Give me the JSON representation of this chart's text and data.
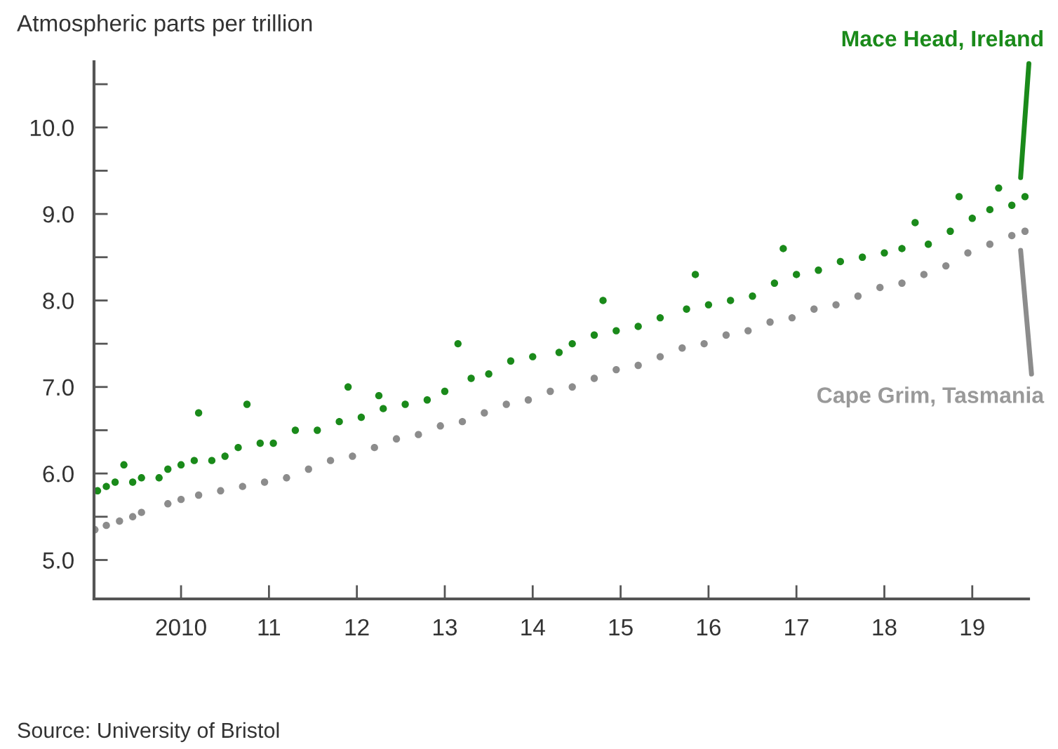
{
  "chart_data": {
    "type": "scatter",
    "ylabel": "Atmospheric parts per trillion",
    "xlim": [
      2009.01,
      2019.64
    ],
    "ylim": [
      4.55,
      10.76
    ],
    "xticks": [
      {
        "value": 2010,
        "label": "2010"
      },
      {
        "value": 2011,
        "label": "11"
      },
      {
        "value": 2012,
        "label": "12"
      },
      {
        "value": 2013,
        "label": "13"
      },
      {
        "value": 2014,
        "label": "14"
      },
      {
        "value": 2015,
        "label": "15"
      },
      {
        "value": 2016,
        "label": "16"
      },
      {
        "value": 2017,
        "label": "17"
      },
      {
        "value": 2018,
        "label": "18"
      },
      {
        "value": 2019,
        "label": "19"
      }
    ],
    "yticks": [
      {
        "value": 5,
        "label": "5.0"
      },
      {
        "value": 5.5,
        "label": null
      },
      {
        "value": 6,
        "label": "6.0"
      },
      {
        "value": 6.5,
        "label": null
      },
      {
        "value": 7,
        "label": "7.0"
      },
      {
        "value": 7.5,
        "label": null
      },
      {
        "value": 8,
        "label": "8.0"
      },
      {
        "value": 8.5,
        "label": null
      },
      {
        "value": 9,
        "label": "9.0"
      },
      {
        "value": 9.5,
        "label": null
      },
      {
        "value": 10,
        "label": "10.0"
      },
      {
        "value": 10.5,
        "label": null
      }
    ],
    "grid": false,
    "legend": false,
    "marker": "circle",
    "series": [
      {
        "name": "Mace Head, Ireland",
        "color": "#1a8a1a",
        "x": [
          2009.05,
          2009.15,
          2009.25,
          2009.35,
          2009.45,
          2009.55,
          2009.75,
          2009.85,
          2010.0,
          2010.15,
          2010.2,
          2010.35,
          2010.5,
          2010.65,
          2010.75,
          2010.9,
          2011.05,
          2011.3,
          2011.55,
          2011.8,
          2011.9,
          2012.05,
          2012.25,
          2012.3,
          2012.55,
          2012.8,
          2013.0,
          2013.15,
          2013.3,
          2013.5,
          2013.75,
          2014.0,
          2014.3,
          2014.45,
          2014.7,
          2014.8,
          2014.95,
          2015.2,
          2015.45,
          2015.75,
          2015.85,
          2016.0,
          2016.25,
          2016.5,
          2016.75,
          2016.85,
          2017.0,
          2017.25,
          2017.5,
          2017.75,
          2018.0,
          2018.2,
          2018.35,
          2018.5,
          2018.75,
          2018.85,
          2019.0,
          2019.2,
          2019.3,
          2019.45,
          2019.6
        ],
        "values": [
          5.8,
          5.85,
          5.9,
          6.1,
          5.9,
          5.95,
          5.95,
          6.05,
          6.1,
          6.15,
          6.7,
          6.15,
          6.2,
          6.3,
          6.8,
          6.35,
          6.35,
          6.5,
          6.5,
          6.6,
          7.0,
          6.65,
          6.9,
          6.75,
          6.8,
          6.85,
          6.95,
          7.5,
          7.1,
          7.15,
          7.3,
          7.35,
          7.4,
          7.5,
          7.6,
          8.0,
          7.65,
          7.7,
          7.8,
          7.9,
          8.3,
          7.95,
          8.0,
          8.05,
          8.2,
          8.6,
          8.3,
          8.35,
          8.45,
          8.5,
          8.55,
          8.6,
          8.9,
          8.65,
          8.8,
          9.2,
          8.95,
          9.05,
          9.3,
          9.1,
          9.2
        ]
      },
      {
        "name": "Cape Grim, Tasmania",
        "color": "#8c8c8c",
        "x": [
          2009.02,
          2009.15,
          2009.3,
          2009.45,
          2009.55,
          2009.85,
          2010.0,
          2010.2,
          2010.45,
          2010.7,
          2010.95,
          2011.2,
          2011.45,
          2011.7,
          2011.95,
          2012.2,
          2012.45,
          2012.7,
          2012.95,
          2013.2,
          2013.45,
          2013.7,
          2013.95,
          2014.2,
          2014.45,
          2014.7,
          2014.95,
          2015.2,
          2015.45,
          2015.7,
          2015.95,
          2016.2,
          2016.45,
          2016.7,
          2016.95,
          2017.2,
          2017.45,
          2017.7,
          2017.95,
          2018.2,
          2018.45,
          2018.7,
          2018.95,
          2019.2,
          2019.45,
          2019.6
        ],
        "values": [
          5.35,
          5.4,
          5.45,
          5.5,
          5.55,
          5.65,
          5.7,
          5.75,
          5.8,
          5.85,
          5.9,
          5.95,
          6.05,
          6.15,
          6.2,
          6.3,
          6.4,
          6.45,
          6.55,
          6.6,
          6.7,
          6.8,
          6.85,
          6.95,
          7.0,
          7.1,
          7.2,
          7.25,
          7.35,
          7.45,
          7.5,
          7.6,
          7.65,
          7.75,
          7.8,
          7.9,
          7.95,
          8.05,
          8.15,
          8.2,
          8.3,
          8.4,
          8.55,
          8.65,
          8.75,
          8.8
        ]
      }
    ],
    "annotations": [
      "Source: University of Bristol"
    ]
  }
}
